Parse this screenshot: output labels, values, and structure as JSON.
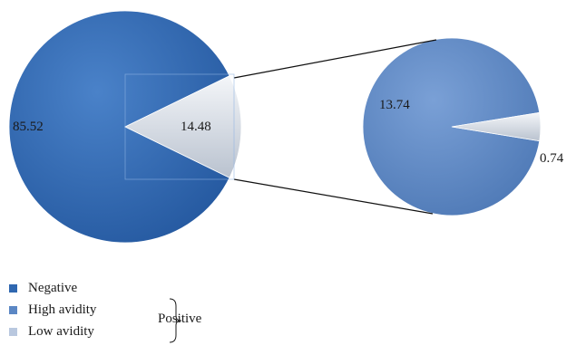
{
  "chart_data": {
    "type": "pie",
    "subtype": "pie-of-pie",
    "main": {
      "slices": [
        {
          "name": "Negative",
          "value": 85.52,
          "label": "85.52",
          "color": "#2f67b0"
        },
        {
          "name": "Positive",
          "value": 14.48,
          "label": "14.48",
          "color": "#dfe4ea"
        }
      ]
    },
    "secondary": {
      "slices": [
        {
          "name": "High avidity",
          "value": 13.74,
          "label": "13.74",
          "color": "#5b87c4"
        },
        {
          "name": "Low avidity",
          "value": 0.74,
          "label": "0.74",
          "color": "#dfe4ea"
        }
      ]
    },
    "legend": {
      "placement": "bottom-left",
      "items": [
        {
          "label": "Negative",
          "color": "#2f67b0"
        },
        {
          "label": "High avidity",
          "color": "#5b87c4"
        },
        {
          "label": "Low avidity",
          "color": "#b9c8df"
        }
      ],
      "group_label": "Positive"
    }
  }
}
